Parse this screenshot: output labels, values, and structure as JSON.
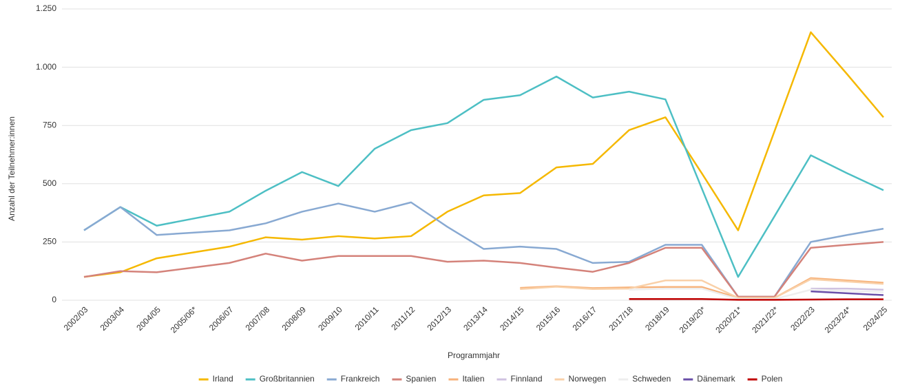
{
  "chart_data": {
    "type": "line",
    "x_label": "Programmjahr",
    "y_label": "Anzahl der Teilnehmer:innen",
    "categories": [
      "2002/03",
      "2003/04",
      "2004/05",
      "2005/06*",
      "2006/07",
      "2007/08",
      "2008/09",
      "2009/10",
      "2010/11",
      "2011/12",
      "2012/13",
      "2013/14",
      "2014/15",
      "2015/16",
      "2016/17",
      "2017/18",
      "2018/19",
      "2019/20*",
      "2020/21*",
      "2021/22*",
      "2022/23",
      "2023/24*",
      "2024/25"
    ],
    "ylim": [
      0,
      1250
    ],
    "yticks": [
      0,
      250,
      500,
      750,
      {
        "value": 1000,
        "label": "1.000"
      },
      {
        "value": 1250,
        "label": "1.250"
      }
    ],
    "grid": true,
    "legend": "bottom",
    "series": [
      {
        "name": "Irland",
        "color": "#f5b800",
        "values": [
          100,
          120,
          180,
          205,
          230,
          270,
          260,
          275,
          265,
          275,
          380,
          450,
          460,
          570,
          585,
          730,
          785,
          545,
          300,
          725,
          1150,
          970,
          785
        ]
      },
      {
        "name": "Großbritannien",
        "color": "#4dbfc4",
        "values": [
          300,
          400,
          320,
          350,
          380,
          470,
          550,
          490,
          650,
          730,
          760,
          860,
          880,
          960,
          870,
          895,
          862,
          480,
          100,
          360,
          622,
          545,
          472
        ]
      },
      {
        "name": "Frankreich",
        "color": "#88a9d2",
        "values": [
          300,
          400,
          280,
          290,
          300,
          330,
          380,
          415,
          380,
          420,
          315,
          220,
          230,
          220,
          160,
          165,
          238,
          238,
          15,
          15,
          250,
          280,
          307
        ]
      },
      {
        "name": "Spanien",
        "color": "#d4827a",
        "values": [
          100,
          125,
          120,
          140,
          160,
          200,
          170,
          190,
          190,
          190,
          165,
          170,
          160,
          140,
          122,
          160,
          225,
          225,
          15,
          15,
          225,
          238,
          250
        ]
      },
      {
        "name": "Italien",
        "color": "#f7b27a",
        "values": [
          null,
          null,
          null,
          null,
          null,
          null,
          null,
          null,
          null,
          null,
          null,
          null,
          53,
          60,
          52,
          55,
          57,
          57,
          10,
          10,
          95,
          85,
          75
        ]
      },
      {
        "name": "Finnland",
        "color": "#cfc2e0",
        "values": [
          null,
          null,
          null,
          null,
          null,
          null,
          null,
          null,
          null,
          null,
          null,
          null,
          null,
          null,
          null,
          null,
          null,
          null,
          null,
          null,
          50,
          50,
          45
        ]
      },
      {
        "name": "Norwegen",
        "color": "#f9d0a8",
        "values": [
          null,
          null,
          null,
          null,
          null,
          null,
          null,
          null,
          null,
          null,
          null,
          null,
          48,
          58,
          48,
          50,
          85,
          85,
          10,
          10,
          90,
          80,
          70
        ]
      },
      {
        "name": "Schweden",
        "color": "#eeeeee",
        "values": [
          null,
          null,
          null,
          null,
          null,
          null,
          null,
          null,
          null,
          null,
          null,
          null,
          null,
          null,
          null,
          45,
          50,
          50,
          5,
          5,
          45,
          40,
          35
        ]
      },
      {
        "name": "Dänemark",
        "color": "#6a4fa8",
        "values": [
          null,
          null,
          null,
          null,
          null,
          null,
          null,
          null,
          null,
          null,
          null,
          null,
          null,
          null,
          null,
          null,
          null,
          null,
          null,
          null,
          38,
          30,
          22
        ]
      },
      {
        "name": "Polen",
        "color": "#c00000",
        "values": [
          null,
          null,
          null,
          null,
          null,
          null,
          null,
          null,
          null,
          null,
          null,
          null,
          null,
          null,
          null,
          5,
          5,
          5,
          2,
          2,
          3,
          4,
          4
        ]
      }
    ]
  }
}
